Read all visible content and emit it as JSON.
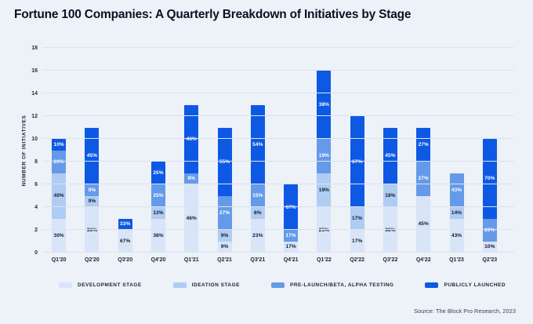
{
  "title": "Fortune 100 Companies: A Quarterly Breakdown of Initiatives by Stage",
  "source": "Source: The Block Pro Research, 2023",
  "colors": {
    "development": "#D8E4F8",
    "ideation": "#AFCCF3",
    "prelaunch": "#659AEA",
    "launched": "#0D59E4",
    "background": "#EDF1F8",
    "grid": "#DCE3EE",
    "label_dark": "#111A28",
    "label_light": "#FFFFFF"
  },
  "legend": [
    {
      "id": "development",
      "label": "DEVELOPMENT STAGE"
    },
    {
      "id": "ideation",
      "label": "IDEATION STAGE"
    },
    {
      "id": "prelaunch",
      "label": "PRE-LAUNCH/BETA, ALPHA TESTING"
    },
    {
      "id": "launched",
      "label": "PUBLICLY LAUNCHED"
    }
  ],
  "chart_data": {
    "type": "bar",
    "stacked": true,
    "title": "Fortune 100 Companies: A Quarterly Breakdown of Initiatives by Stage",
    "xlabel": "",
    "ylabel": "NUMBER OF INITIATIVES",
    "ylim": [
      0,
      18
    ],
    "yticks": [
      0,
      2,
      4,
      6,
      8,
      10,
      12,
      14,
      16,
      18
    ],
    "grid": true,
    "legend_position": "bottom",
    "categories": [
      "Q1'20",
      "Q2'20",
      "Q3'20",
      "Q4'20",
      "Q1'21",
      "Q2'21",
      "Q3'21",
      "Q4'21",
      "Q1'22",
      "Q2'22",
      "Q3'22",
      "Q4'22",
      "Q1'23",
      "Q2'23"
    ],
    "totals": [
      10,
      11,
      3,
      8,
      13,
      11,
      13,
      6,
      16,
      12,
      11,
      11,
      7,
      10
    ],
    "series": [
      {
        "id": "development",
        "name": "Development Stage",
        "label_color": "dark",
        "values": [
          3,
          4,
          2,
          3,
          6,
          1,
          3,
          1,
          4,
          2,
          4,
          5,
          3,
          1
        ],
        "labels": [
          "30%",
          "36%",
          "67%",
          "38%",
          "46%",
          "9%",
          "23%",
          "17%",
          "25%",
          "17%",
          "36%",
          "45%",
          "43%",
          "10%"
        ]
      },
      {
        "id": "ideation",
        "name": "Ideation Stage",
        "label_color": "dark",
        "values": [
          4,
          1,
          0,
          1,
          0,
          1,
          1,
          0,
          3,
          2,
          2,
          0,
          1,
          0
        ],
        "labels": [
          "40%",
          "9%",
          "",
          "13%",
          "",
          "9%",
          "8%",
          "",
          "19%",
          "17%",
          "18%",
          "",
          "14%",
          ""
        ]
      },
      {
        "id": "prelaunch",
        "name": "Pre-Launch/Beta, Alpha Testing",
        "label_color": "light",
        "values": [
          2,
          1,
          0,
          2,
          1,
          3,
          2,
          1,
          3,
          0,
          0,
          3,
          3,
          2
        ],
        "labels": [
          "20%",
          "9%",
          "",
          "25%",
          "8%",
          "27%",
          "15%",
          "17%",
          "19%",
          "",
          "",
          "27%",
          "43%",
          "20%"
        ]
      },
      {
        "id": "launched",
        "name": "Publicly Launched",
        "label_color": "light",
        "values": [
          1,
          5,
          1,
          2,
          6,
          6,
          7,
          4,
          6,
          8,
          5,
          3,
          0,
          7
        ],
        "labels": [
          "10%",
          "45%",
          "33%",
          "25%",
          "46%",
          "55%",
          "54%",
          "67%",
          "38%",
          "67%",
          "45%",
          "27%",
          "",
          "70%"
        ]
      }
    ]
  }
}
